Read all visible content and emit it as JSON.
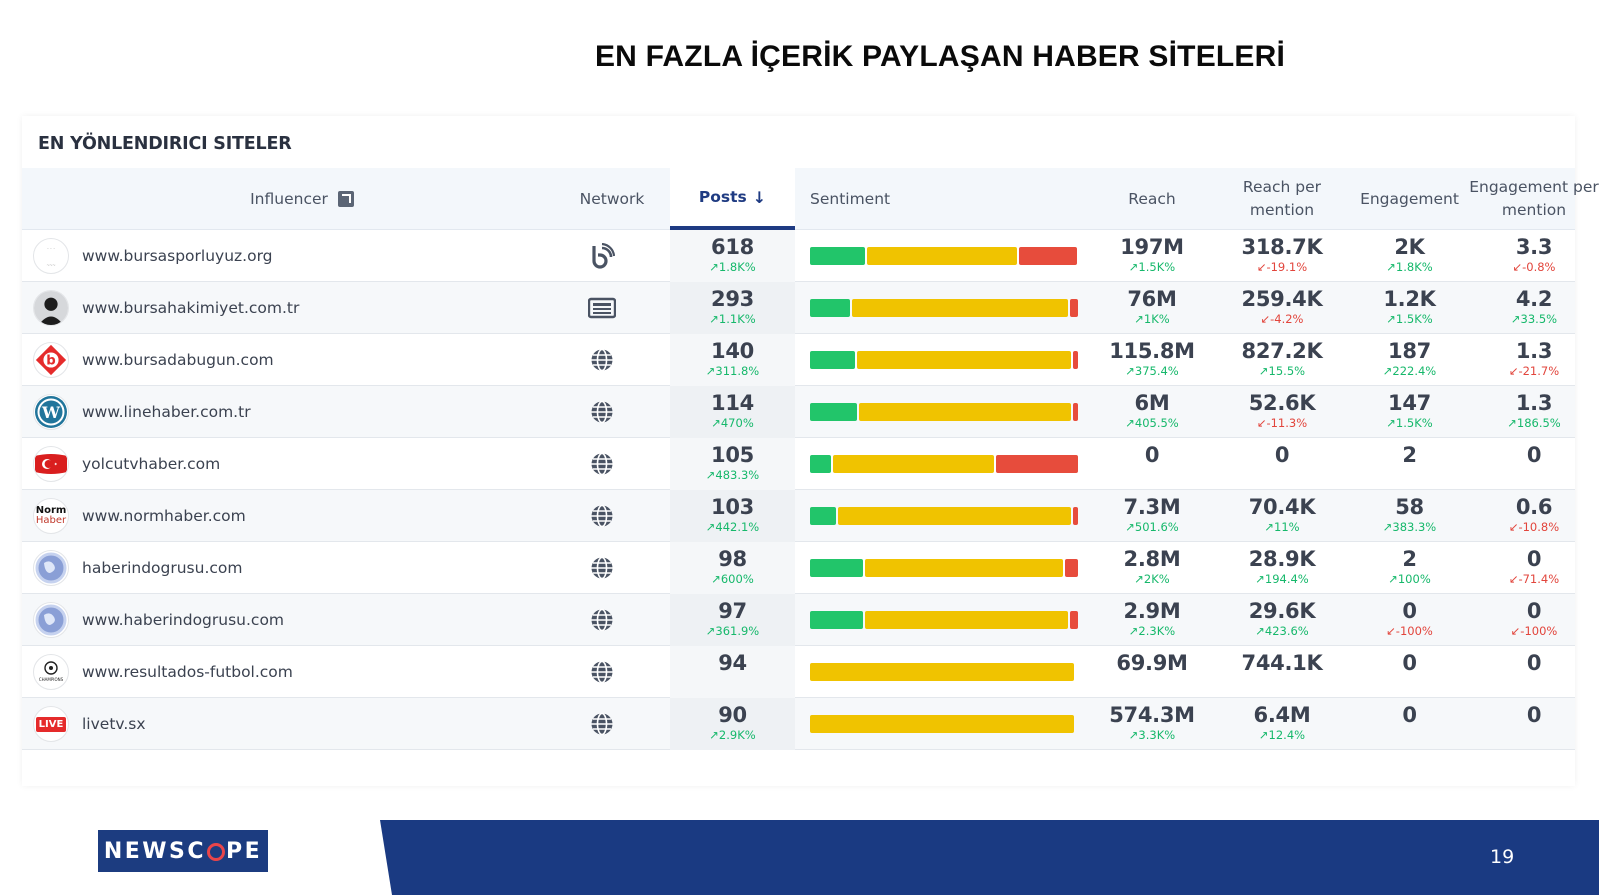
{
  "slide": {
    "title": "EN FAZLA İÇERİK PAYLAŞAN HABER SİTELERİ",
    "page_number": "19"
  },
  "panel": {
    "title": "EN YÖNLENDIRICI SITELER"
  },
  "columns": {
    "influencer": "Influencer",
    "network": "Network",
    "posts": "Posts",
    "sentiment": "Sentiment",
    "reach": "Reach",
    "reach_per_mention": "Reach per mention",
    "engagement": "Engagement",
    "engagement_per_mention": "Engagement per mention"
  },
  "rows": [
    {
      "site": "www.bursasporluyuz.org",
      "network": "blog-icon",
      "avatar": "bursaspor-crest",
      "posts": "618",
      "posts_d": "1.8K%",
      "posts_dir": "up",
      "sentiment": [
        0.21,
        0.57,
        0.22
      ],
      "reach": "197M",
      "reach_d": "1.5K%",
      "reach_dir": "up",
      "rpm": "318.7K",
      "rpm_d": "-19.1%",
      "rpm_dir": "down",
      "eng": "2K",
      "eng_d": "1.8K%",
      "eng_dir": "up",
      "epm": "3.3",
      "epm_d": "-0.8%",
      "epm_dir": "down"
    },
    {
      "site": "www.bursahakimiyet.com.tr",
      "network": "news-icon",
      "avatar": "person-silhouette",
      "posts": "293",
      "posts_d": "1.1K%",
      "posts_dir": "up",
      "sentiment": [
        0.15,
        0.82,
        0.03
      ],
      "reach": "76M",
      "reach_d": "1K%",
      "reach_dir": "up",
      "rpm": "259.4K",
      "rpm_d": "-4.2%",
      "rpm_dir": "down",
      "eng": "1.2K",
      "eng_d": "1.5K%",
      "eng_dir": "up",
      "epm": "4.2",
      "epm_d": "33.5%",
      "epm_dir": "up"
    },
    {
      "site": "www.bursadabugun.com",
      "network": "web-icon",
      "avatar": "red-b-logo",
      "posts": "140",
      "posts_d": "311.8%",
      "posts_dir": "up",
      "sentiment": [
        0.17,
        0.82,
        0.01
      ],
      "reach": "115.8M",
      "reach_d": "375.4%",
      "reach_dir": "up",
      "rpm": "827.2K",
      "rpm_d": "15.5%",
      "rpm_dir": "up",
      "eng": "187",
      "eng_d": "222.4%",
      "eng_dir": "up",
      "epm": "1.3",
      "epm_d": "-21.7%",
      "epm_dir": "down"
    },
    {
      "site": "www.linehaber.com.tr",
      "network": "web-icon",
      "avatar": "wordpress-logo",
      "posts": "114",
      "posts_d": "470%",
      "posts_dir": "up",
      "sentiment": [
        0.18,
        0.81,
        0.01
      ],
      "reach": "6M",
      "reach_d": "405.5%",
      "reach_dir": "up",
      "rpm": "52.6K",
      "rpm_d": "-11.3%",
      "rpm_dir": "down",
      "eng": "147",
      "eng_d": "1.5K%",
      "eng_dir": "up",
      "epm": "1.3",
      "epm_d": "186.5%",
      "epm_dir": "up"
    },
    {
      "site": "yolcutvhaber.com",
      "network": "web-icon",
      "avatar": "turkish-flag",
      "posts": "105",
      "posts_d": "483.3%",
      "posts_dir": "up",
      "sentiment": [
        0.08,
        0.61,
        0.31
      ],
      "reach": "0",
      "reach_d": "",
      "reach_dir": "",
      "rpm": "0",
      "rpm_d": "",
      "rpm_dir": "",
      "eng": "2",
      "eng_d": "",
      "eng_dir": "",
      "epm": "0",
      "epm_d": "",
      "epm_dir": ""
    },
    {
      "site": "www.normhaber.com",
      "network": "web-icon",
      "avatar": "normhaber-logo",
      "posts": "103",
      "posts_d": "442.1%",
      "posts_dir": "up",
      "sentiment": [
        0.1,
        0.89,
        0.01
      ],
      "reach": "7.3M",
      "reach_d": "501.6%",
      "reach_dir": "up",
      "rpm": "70.4K",
      "rpm_d": "11%",
      "rpm_dir": "up",
      "eng": "58",
      "eng_d": "383.3%",
      "eng_dir": "up",
      "epm": "0.6",
      "epm_d": "-10.8%",
      "epm_dir": "down"
    },
    {
      "site": "haberindogrusu.com",
      "network": "web-icon",
      "avatar": "globe-avatar",
      "posts": "98",
      "posts_d": "600%",
      "posts_dir": "up",
      "sentiment": [
        0.2,
        0.75,
        0.05
      ],
      "reach": "2.8M",
      "reach_d": "2K%",
      "reach_dir": "up",
      "rpm": "28.9K",
      "rpm_d": "194.4%",
      "rpm_dir": "up",
      "eng": "2",
      "eng_d": "100%",
      "eng_dir": "up",
      "epm": "0",
      "epm_d": "-71.4%",
      "epm_dir": "down"
    },
    {
      "site": "www.haberindogrusu.com",
      "network": "web-icon",
      "avatar": "globe-avatar",
      "posts": "97",
      "posts_d": "361.9%",
      "posts_dir": "up",
      "sentiment": [
        0.2,
        0.77,
        0.03
      ],
      "reach": "2.9M",
      "reach_d": "2.3K%",
      "reach_dir": "up",
      "rpm": "29.6K",
      "rpm_d": "423.6%",
      "rpm_dir": "up",
      "eng": "0",
      "eng_d": "-100%",
      "eng_dir": "down",
      "epm": "0",
      "epm_d": "-100%",
      "epm_dir": "down"
    },
    {
      "site": "www.resultados-futbol.com",
      "network": "web-icon",
      "avatar": "champions-league-logo",
      "posts": "94",
      "posts_d": "",
      "posts_dir": "",
      "sentiment": [
        0,
        1,
        0
      ],
      "reach": "69.9M",
      "reach_d": "",
      "reach_dir": "",
      "rpm": "744.1K",
      "rpm_d": "",
      "rpm_dir": "",
      "eng": "0",
      "eng_d": "",
      "eng_dir": "",
      "epm": "0",
      "epm_d": "",
      "epm_dir": ""
    },
    {
      "site": "livetv.sx",
      "network": "web-icon",
      "avatar": "live-logo",
      "posts": "90",
      "posts_d": "2.9K%",
      "posts_dir": "up",
      "sentiment": [
        0,
        1,
        0
      ],
      "reach": "574.3M",
      "reach_d": "3.3K%",
      "reach_dir": "up",
      "rpm": "6.4M",
      "rpm_d": "12.4%",
      "rpm_dir": "up",
      "eng": "0",
      "eng_d": "",
      "eng_dir": "",
      "epm": "0",
      "epm_d": "",
      "epm_dir": ""
    }
  ],
  "avatar_text": {
    "normhaber-logo": [
      "Norm",
      "Haber"
    ],
    "live-logo": "LIVE"
  },
  "brand": {
    "logo_text_a": "NEWSC",
    "logo_text_b": "PE",
    "footer_color": "#1a3a82"
  },
  "colors": {
    "positive": "#22c56a",
    "neutral": "#f0c300",
    "negative": "#e74c3c",
    "up": "#16b86b",
    "down": "#e2453c"
  }
}
